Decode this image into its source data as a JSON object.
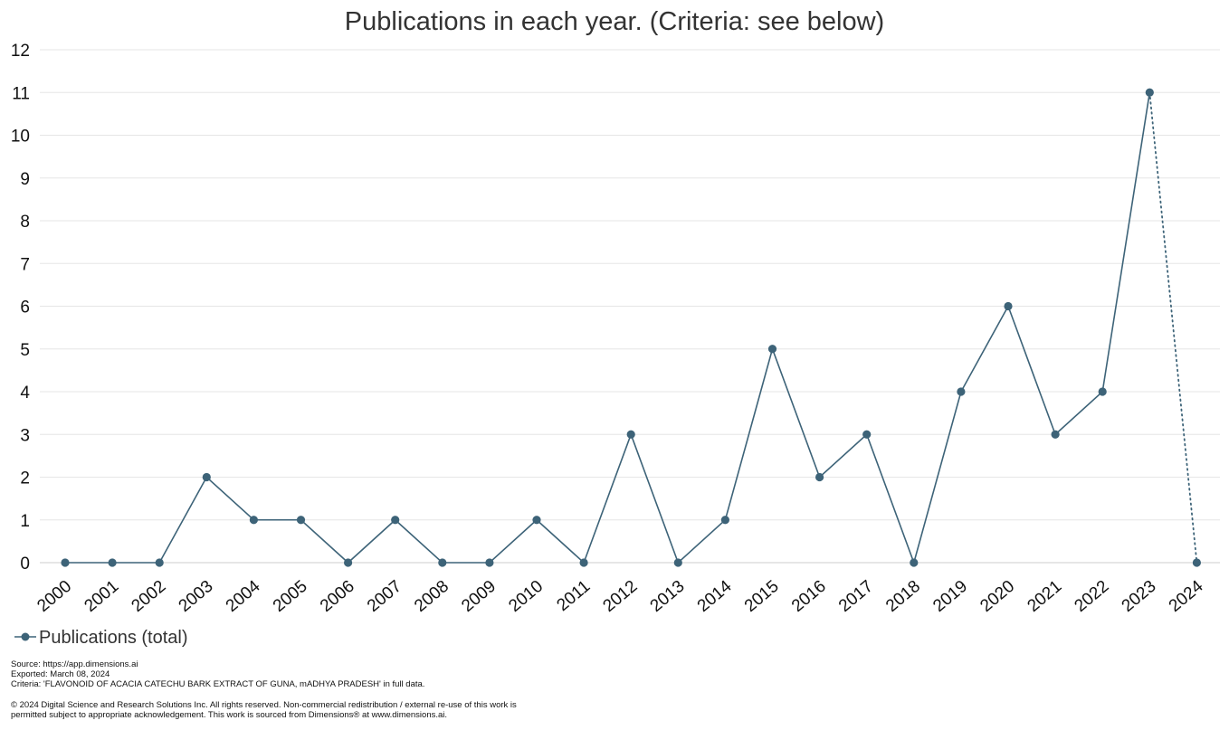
{
  "chart_data": {
    "type": "line",
    "title": "Publications in each year. (Criteria: see below)",
    "xlabel": "",
    "ylabel": "",
    "categories": [
      "2000",
      "2001",
      "2002",
      "2003",
      "2004",
      "2005",
      "2006",
      "2007",
      "2008",
      "2009",
      "2010",
      "2011",
      "2012",
      "2013",
      "2014",
      "2015",
      "2016",
      "2017",
      "2018",
      "2019",
      "2020",
      "2021",
      "2022",
      "2023",
      "2024"
    ],
    "series": [
      {
        "name": "Publications (total)",
        "values": [
          0,
          0,
          0,
          2,
          1,
          1,
          0,
          1,
          0,
          0,
          1,
          0,
          3,
          0,
          1,
          5,
          2,
          3,
          0,
          4,
          6,
          3,
          4,
          11,
          0
        ],
        "dotted_from_index": 23,
        "color": "#3d6378"
      }
    ],
    "y_ticks": [
      "0",
      "1",
      "2",
      "3",
      "4",
      "5",
      "6",
      "7",
      "8",
      "9",
      "10",
      "11",
      "12"
    ],
    "ylim": [
      0,
      12
    ],
    "grid": true,
    "legend": "bottom-left"
  },
  "footer": {
    "source": "Source: https://app.dimensions.ai",
    "exported": "Exported: March 08, 2024",
    "criteria": "Criteria: 'FLAVONOID OF ACACIA CATECHU BARK EXTRACT OF GUNA, mADHYA PRADESH' in full data.",
    "copyright_line1": "© 2024 Digital Science and Research Solutions Inc. All rights reserved. Non-commercial redistribution / external re-use of this work is",
    "copyright_line2": "permitted subject to appropriate acknowledgement. This work is sourced from Dimensions® at www.dimensions.ai."
  },
  "colors": {
    "series": "#3d6378",
    "grid": "#e6e6e6",
    "axis": "#cccccc"
  }
}
